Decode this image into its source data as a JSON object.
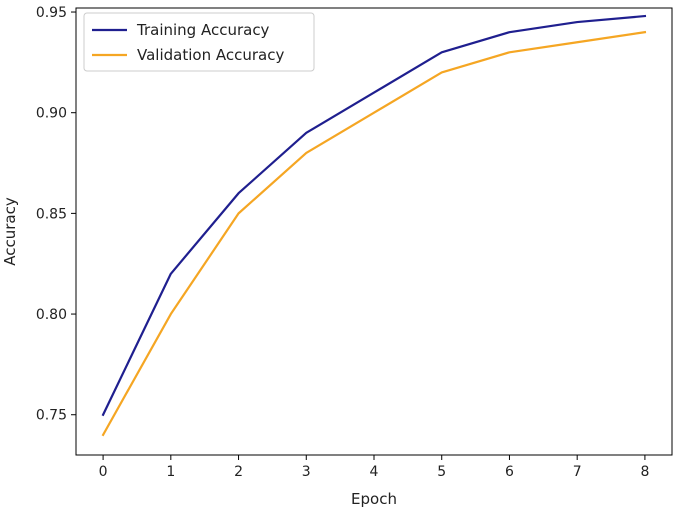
{
  "chart_data": {
    "type": "line",
    "xlabel": "Epoch",
    "ylabel": "Accuracy",
    "x": [
      0,
      1,
      2,
      3,
      4,
      5,
      6,
      7,
      8
    ],
    "xticks": [
      0,
      1,
      2,
      3,
      4,
      5,
      6,
      7,
      8
    ],
    "yticks": [
      0.75,
      0.8,
      0.85,
      0.9,
      0.95
    ],
    "ytick_labels": [
      "0.75",
      "0.80",
      "0.85",
      "0.90",
      "0.95"
    ],
    "xlim": [
      -0.4,
      8.4
    ],
    "ylim": [
      0.73,
      0.952
    ],
    "grid": false,
    "legend_position": "top-left",
    "series": [
      {
        "name": "Training Accuracy",
        "color": "#1f1f8f",
        "values": [
          0.75,
          0.82,
          0.86,
          0.89,
          0.91,
          0.93,
          0.94,
          0.945,
          0.948
        ]
      },
      {
        "name": "Validation Accuracy",
        "color": "#f5a623",
        "values": [
          0.74,
          0.8,
          0.85,
          0.88,
          0.9,
          0.92,
          0.93,
          0.935,
          0.94
        ]
      }
    ]
  }
}
